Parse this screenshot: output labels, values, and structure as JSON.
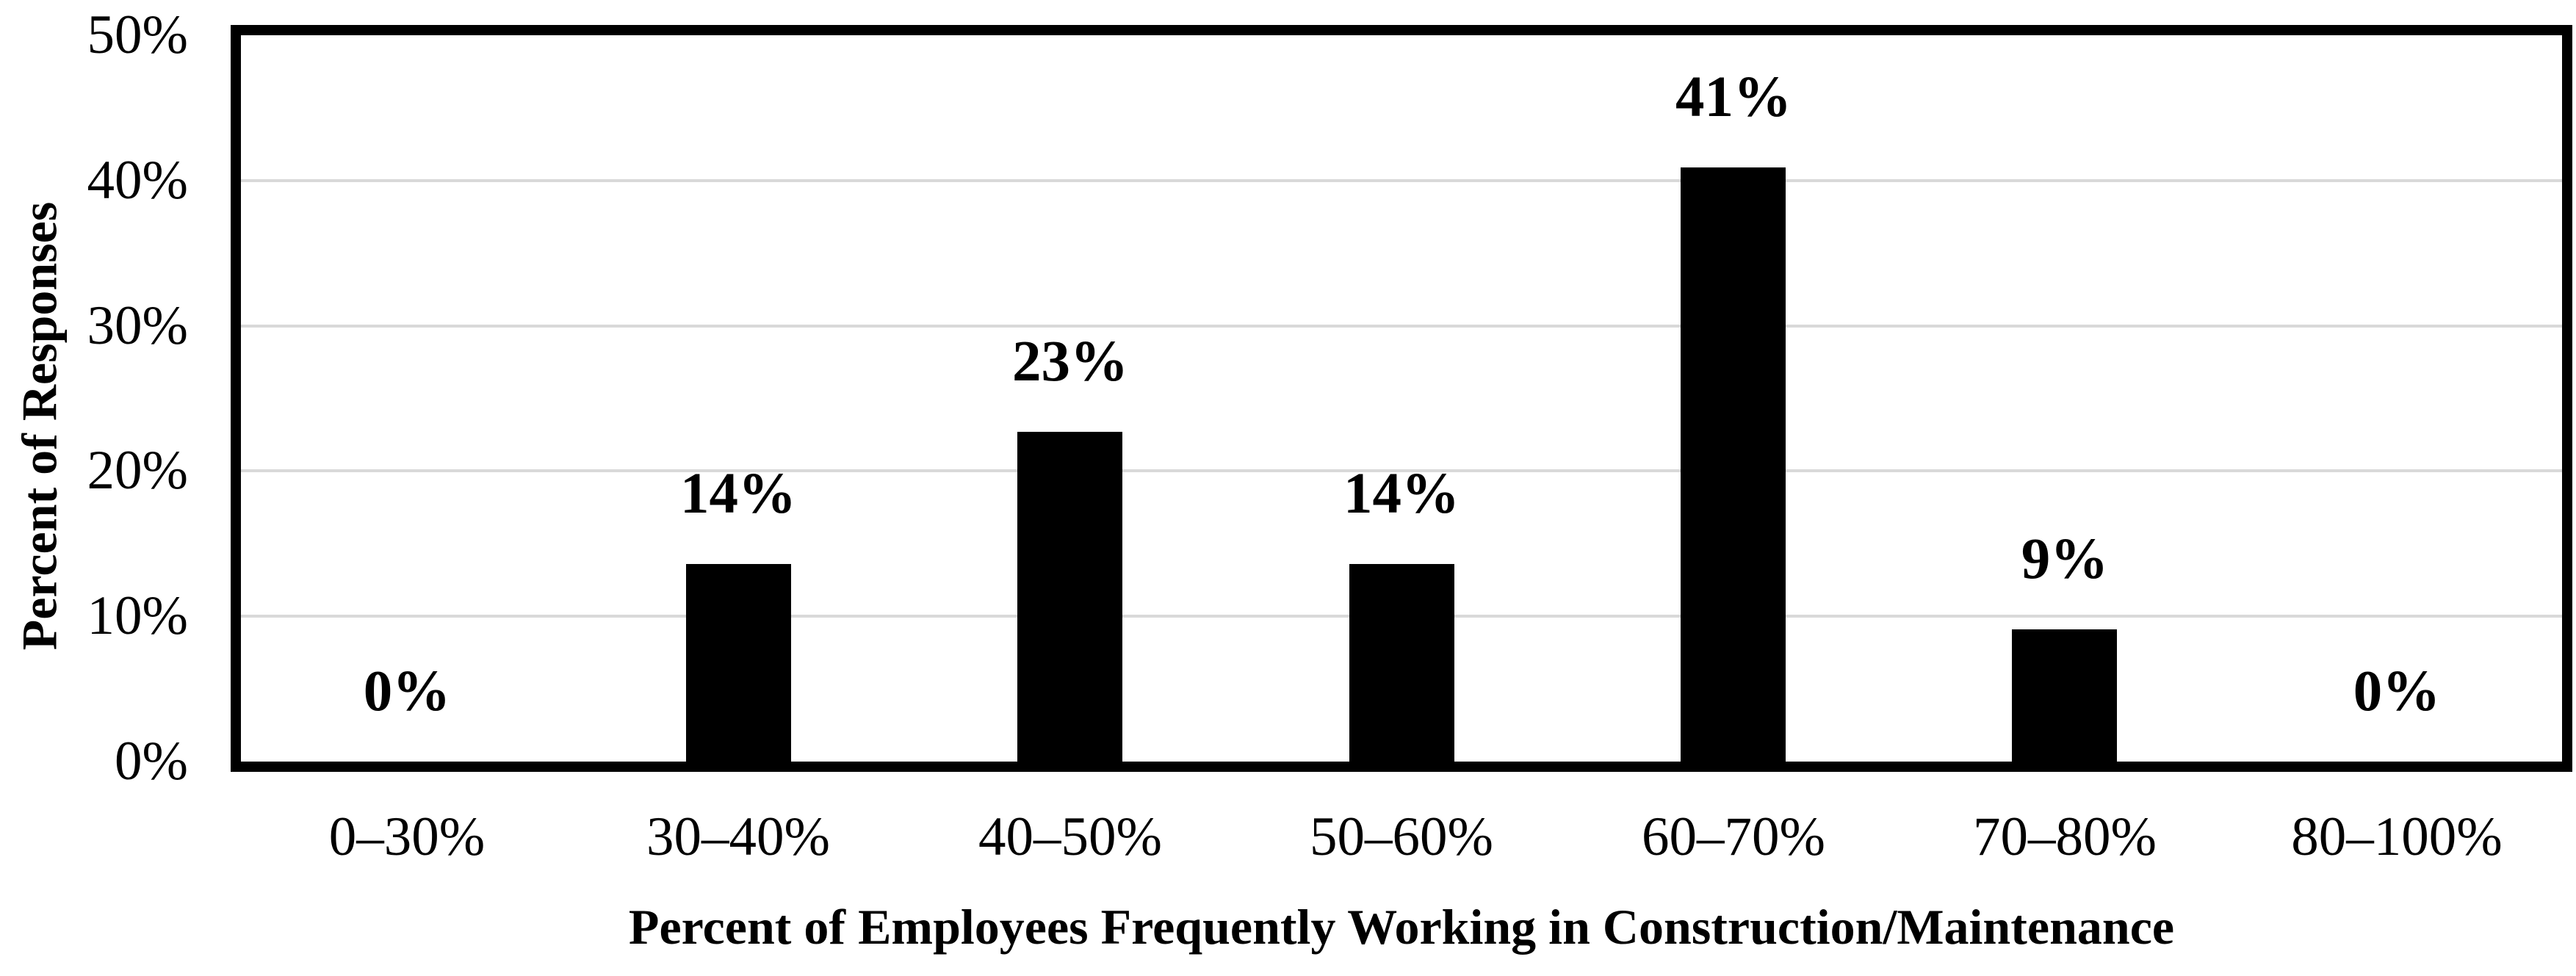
{
  "chart_data": {
    "type": "bar",
    "title": "",
    "xlabel": "Percent of Employees Frequently Working in Construction/Maintenance",
    "ylabel": "Percent of Responses",
    "categories": [
      "0–30%",
      "30–40%",
      "40–50%",
      "50–60%",
      "60–70%",
      "70–80%",
      "80–100%"
    ],
    "values": [
      0,
      13.6,
      22.7,
      13.6,
      40.9,
      9.1,
      0
    ],
    "data_labels": [
      "0%",
      "14%",
      "23%",
      "14%",
      "41%",
      "9%",
      "0%"
    ],
    "y_ticks": [
      "0%",
      "10%",
      "20%",
      "30%",
      "40%",
      "50%"
    ],
    "ylim": [
      0,
      50
    ],
    "grid": "horizontal-gridlines-at-10-20-30-40",
    "legend": "none",
    "bar_color": "#000000",
    "gridline_color": "#d9d9d9",
    "plot_border_color": "#000000",
    "text_color": "#000000",
    "background_color": "#ffffff"
  }
}
